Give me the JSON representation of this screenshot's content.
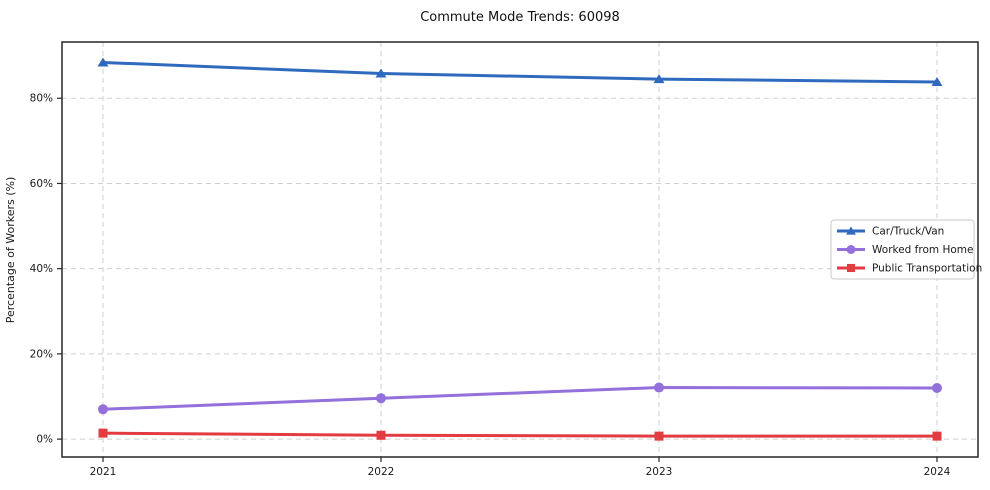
{
  "title": "Commute Mode Trends: 60098",
  "chart_data": {
    "type": "line",
    "title": "Commute Mode Trends: 60098",
    "xlabel": "",
    "ylabel": "Percentage of Workers (%)",
    "categories": [
      "2021",
      "2022",
      "2023",
      "2024"
    ],
    "series": [
      {
        "name": "Car/Truck/Van",
        "values": [
          88.4,
          85.8,
          84.5,
          83.8
        ],
        "color": "#2f6abf",
        "marker": "triangle"
      },
      {
        "name": "Worked from Home",
        "values": [
          7.0,
          9.6,
          12.1,
          12.0
        ],
        "color": "#9370db",
        "marker": "circle"
      },
      {
        "name": "Public Transportation",
        "values": [
          1.4,
          0.9,
          0.7,
          0.7
        ],
        "color": "#e23b41",
        "marker": "square"
      }
    ],
    "yticks": [
      0,
      20,
      40,
      60,
      80
    ],
    "ytick_labels": [
      "0%",
      "20%",
      "40%",
      "60%",
      "80%"
    ],
    "ylim": [
      -4.2,
      93.2
    ],
    "grid": true,
    "grid_style": "dashed",
    "grid_color": "#cfcfcf",
    "spine_color": "#262626",
    "legend_position": "center-right",
    "background": "#ffffff"
  }
}
